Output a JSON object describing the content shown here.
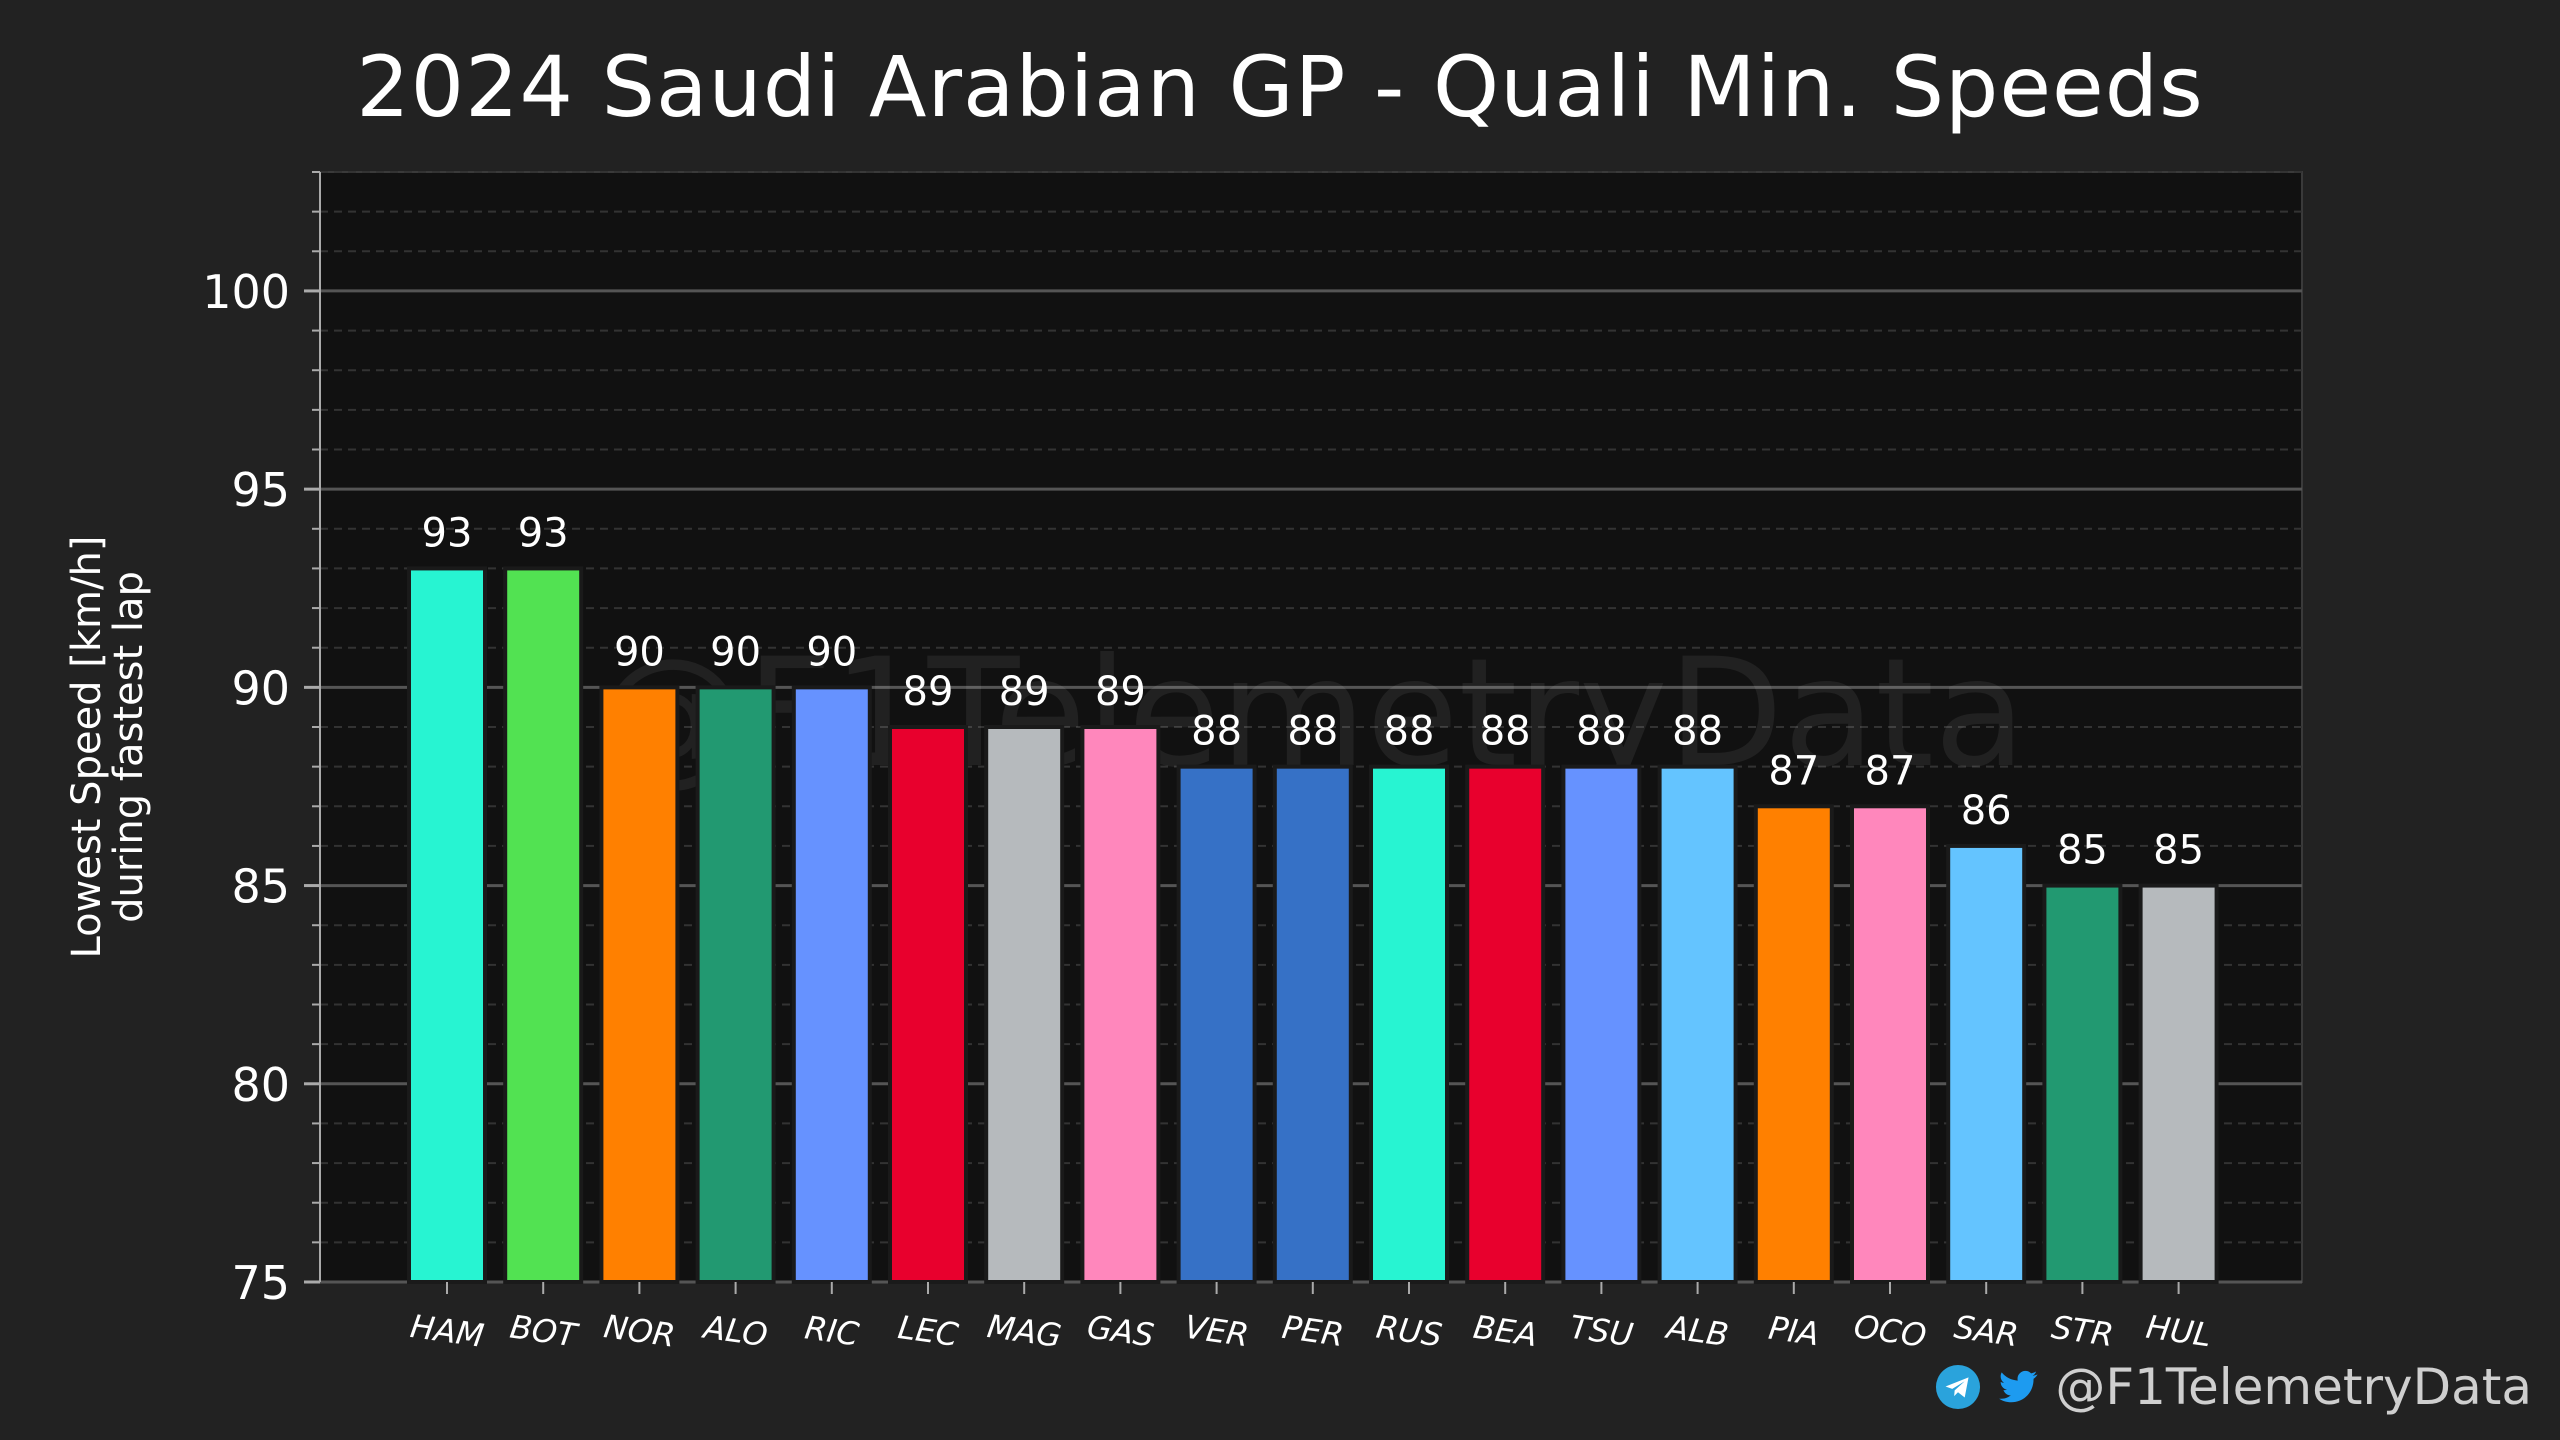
{
  "chart_data": {
    "type": "bar",
    "title": "2024 Saudi Arabian GP - Quali Min. Speeds",
    "ylabel": "Lowest Speed [km/h]\nduring fastest lap",
    "xlabel": "",
    "ylim": [
      75,
      103
    ],
    "yticks": [
      75,
      80,
      85,
      90,
      95,
      100
    ],
    "grid": true,
    "categories": [
      "HAM",
      "BOT",
      "NOR",
      "ALO",
      "RIC",
      "LEC",
      "MAG",
      "GAS",
      "VER",
      "PER",
      "RUS",
      "BEA",
      "TSU",
      "ALB",
      "PIA",
      "OCO",
      "SAR",
      "STR",
      "HUL"
    ],
    "values": [
      93,
      93,
      90,
      90,
      90,
      89,
      89,
      89,
      88,
      88,
      88,
      88,
      88,
      88,
      87,
      87,
      86,
      85,
      85
    ],
    "data_labels": [
      "93",
      "93",
      "90",
      "90",
      "90",
      "89",
      "89",
      "89",
      "88",
      "88",
      "88",
      "88",
      "88",
      "88",
      "87",
      "87",
      "86",
      "85",
      "85"
    ],
    "colors": [
      "#27f4d2",
      "#52e252",
      "#ff8000",
      "#229971",
      "#6692ff",
      "#e8002d",
      "#b6babd",
      "#ff87bc",
      "#3671c6",
      "#3671c6",
      "#27f4d2",
      "#e8002d",
      "#6692ff",
      "#64c4ff",
      "#ff8000",
      "#ff87bc",
      "#64c4ff",
      "#229971",
      "#b6babd"
    ]
  },
  "watermark": "@F1TelemetryData",
  "footer": {
    "handle": "@F1TelemetryData",
    "icons": [
      "telegram-icon",
      "twitter-icon"
    ]
  },
  "colors": {
    "background": "#222222",
    "plot_background": "#111111",
    "grid_major": "#555555",
    "grid_minor": "#333333"
  }
}
